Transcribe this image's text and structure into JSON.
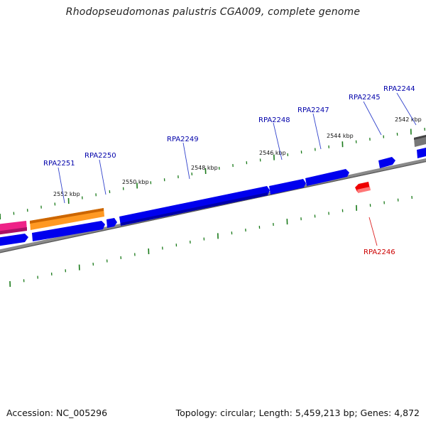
{
  "title": "Rhodopseudomonas palustris CGA009, complete genome",
  "footer": {
    "accession": "Accession: NC_005296",
    "topology": "Topology: circular; Length: 5,459,213 bp; Genes: 4,872"
  },
  "colors": {
    "forward_gene": "#0000ee",
    "reverse_gene": "#ee0000",
    "orange_gene": "#ff9922",
    "pink_gene": "#ee2288",
    "gray_gene": "#777777",
    "backbone": "#8a8a8a",
    "tick": "#1a7a1a",
    "forward_label": "#0000aa",
    "reverse_label": "#cc0000"
  },
  "scale_labels": [
    "2542 kbp",
    "2544 kbp",
    "2546 kbp",
    "2548 kbp",
    "2550 kbp",
    "2552 kbp"
  ],
  "gene_labels": [
    {
      "name": "RPA2244",
      "strand": "forward"
    },
    {
      "name": "RPA2245",
      "strand": "forward"
    },
    {
      "name": "RPA2246",
      "strand": "reverse"
    },
    {
      "name": "RPA2247",
      "strand": "forward"
    },
    {
      "name": "RPA2248",
      "strand": "forward"
    },
    {
      "name": "RPA2249",
      "strand": "forward"
    },
    {
      "name": "RPA2250",
      "strand": "forward"
    },
    {
      "name": "RPA2251",
      "strand": "forward"
    }
  ]
}
